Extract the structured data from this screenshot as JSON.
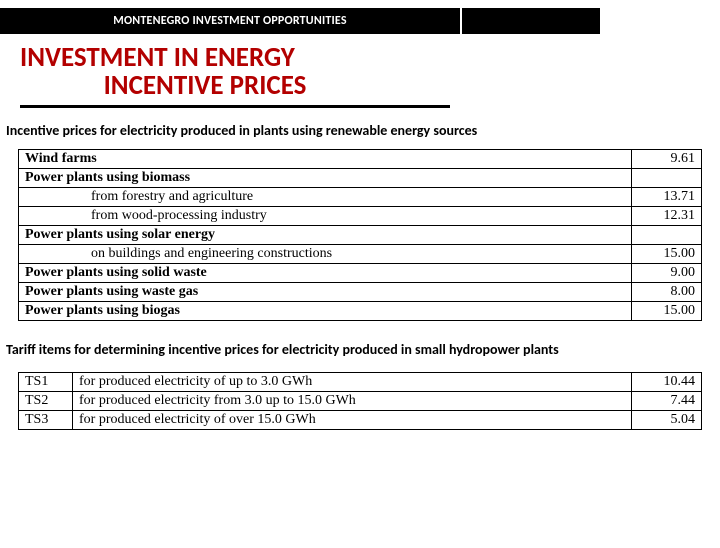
{
  "header": {
    "label": "MONTENEGRO INVESTMENT OPPORTUNITIES"
  },
  "title": {
    "line1": "INVESTMENT IN ENERGY",
    "line2": "INCENTIVE PRICES"
  },
  "subhead1": "Incentive prices for electricity produced in plants using renewable energy sources",
  "incentive_table": {
    "rows": [
      {
        "label": "Wind farms",
        "bold": true,
        "indent": false,
        "value": "9.61"
      },
      {
        "label": "Power plants using biomass",
        "bold": true,
        "indent": false,
        "value": ""
      },
      {
        "label": "from forestry and agriculture",
        "bold": false,
        "indent": true,
        "value": "13.71"
      },
      {
        "label": "from wood-processing industry",
        "bold": false,
        "indent": true,
        "value": "12.31"
      },
      {
        "label": "Power plants using solar energy",
        "bold": true,
        "indent": false,
        "value": ""
      },
      {
        "label": "on buildings and engineering constructions",
        "bold": false,
        "indent": true,
        "value": "15.00"
      },
      {
        "label": "Power plants using solid waste",
        "bold": true,
        "indent": false,
        "value": "9.00"
      },
      {
        "label": "Power plants using waste gas",
        "bold": true,
        "indent": false,
        "value": "8.00"
      },
      {
        "label": "Power plants using biogas",
        "bold": true,
        "indent": false,
        "value": "15.00"
      }
    ]
  },
  "subhead2": "Tariff items for determining incentive prices for electricity produced in small hydropower plants",
  "tariff_table": {
    "rows": [
      {
        "code": "TS1",
        "desc": "for produced electricity of up to 3.0 GWh",
        "value": "10.44"
      },
      {
        "code": "TS2",
        "desc": "for produced electricity from 3.0 up to 15.0 GWh",
        "value": "7.44"
      },
      {
        "code": "TS3",
        "desc": "for produced electricity of over 15.0 GWh",
        "value": "5.04"
      }
    ]
  }
}
